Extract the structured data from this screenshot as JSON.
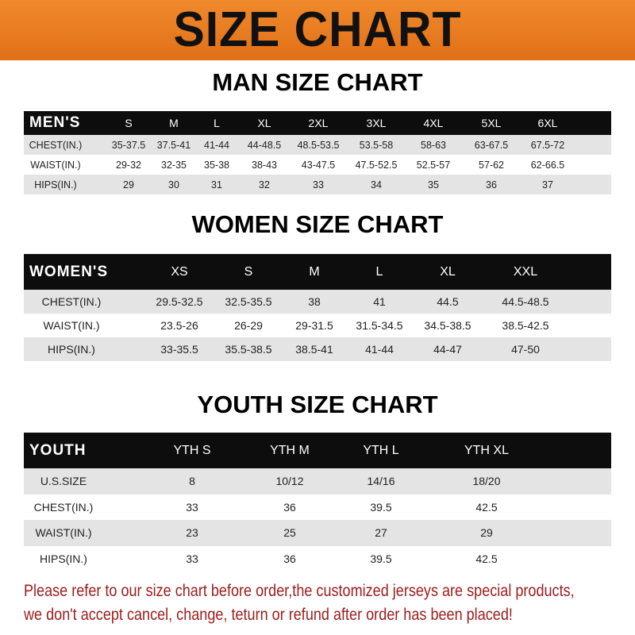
{
  "banner": {
    "title": "SIZE CHART"
  },
  "men": {
    "title": "MAN SIZE CHART",
    "header": [
      "MEN'S",
      "S",
      "M",
      "L",
      "XL",
      "2XL",
      "3XL",
      "4XL",
      "5XL",
      "6XL"
    ],
    "rows": [
      [
        "CHEST(IN.)",
        "35-37.5",
        "37.5-41",
        "41-44",
        "44-48.5",
        "48.5-53.5",
        "53.5-58",
        "58-63",
        "63-67.5",
        "67.5-72"
      ],
      [
        "WAIST(IN.)",
        "29-32",
        "32-35",
        "35-38",
        "38-43",
        "43-47.5",
        "47.5-52.5",
        "52.5-57",
        "57-62",
        "62-66.5"
      ],
      [
        "HIPS(IN.)",
        "29",
        "30",
        "31",
        "32",
        "33",
        "34",
        "35",
        "36",
        "37"
      ]
    ]
  },
  "women": {
    "title": "WOMEN SIZE CHART",
    "header": [
      "WOMEN'S",
      "XS",
      "S",
      "M",
      "L",
      "XL",
      "XXL"
    ],
    "rows": [
      [
        "CHEST(IN.)",
        "29.5-32.5",
        "32.5-35.5",
        "38",
        "41",
        "44.5",
        "44.5-48.5"
      ],
      [
        "WAIST(IN.)",
        "23.5-26",
        "26-29",
        "29-31.5",
        "31.5-34.5",
        "34.5-38.5",
        "38.5-42.5"
      ],
      [
        "HIPS(IN.)",
        "33-35.5",
        "35.5-38.5",
        "38.5-41",
        "41-44",
        "44-47",
        "47-50"
      ]
    ]
  },
  "youth": {
    "title": "YOUTH SIZE CHART",
    "header": [
      "YOUTH",
      "YTH S",
      "YTH M",
      "YTH L",
      "YTH XL"
    ],
    "rows": [
      [
        "U.S.SIZE",
        "8",
        "10/12",
        "14/16",
        "18/20"
      ],
      [
        "CHEST(IN.)",
        "33",
        "36",
        "39.5",
        "42.5"
      ],
      [
        "WAIST(IN.)",
        "23",
        "25",
        "27",
        "29"
      ],
      [
        "HIPS(IN.)",
        "33",
        "36",
        "39.5",
        "42.5"
      ]
    ]
  },
  "note": {
    "line1": "Please refer to our size chart before order,the customized jerseys are special products,",
    "line2": "we don't accept cancel, change, teturn or refund after order has been placed!"
  },
  "colors": {
    "banner": "#e8771f",
    "header_row": "#0d0d0d",
    "alt_row": "#e4e4e4",
    "note": "#9b1c1c"
  }
}
